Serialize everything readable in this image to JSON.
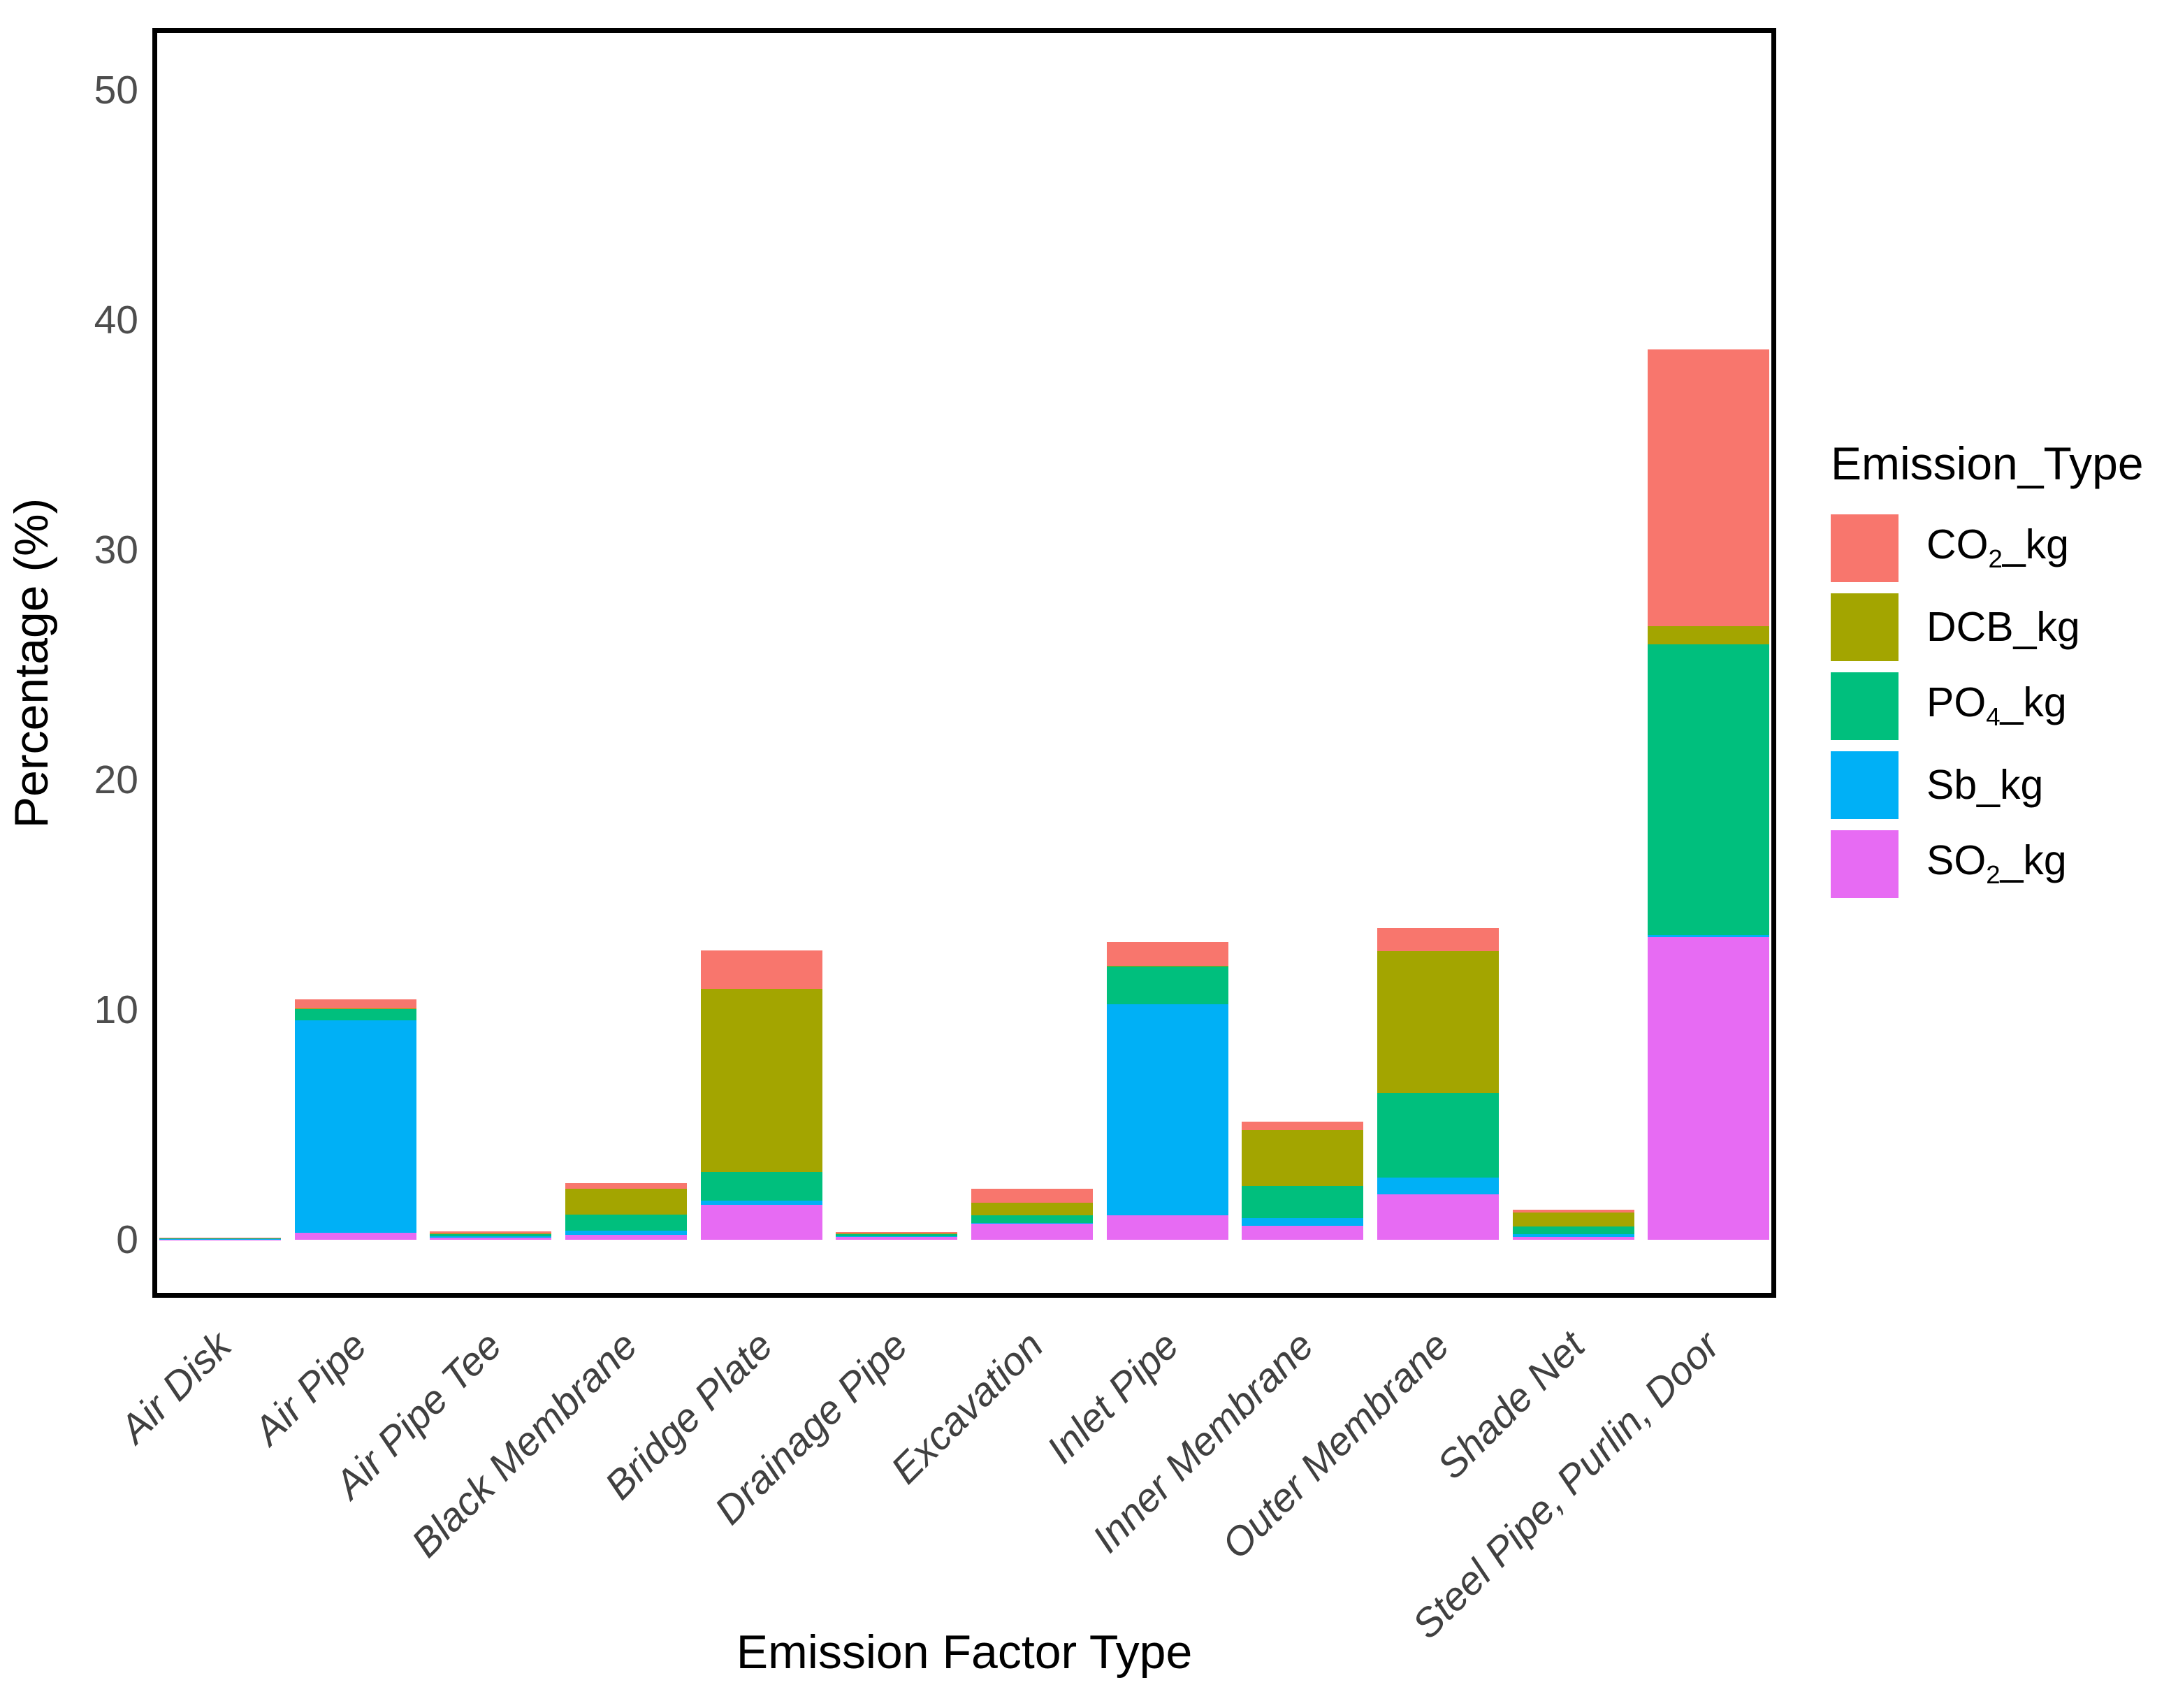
{
  "chart_data": {
    "type": "bar",
    "stacked": true,
    "title": "",
    "xlabel": "Emission Factor Type",
    "ylabel": "Percentage (%)",
    "ylim": [
      0,
      50
    ],
    "yticks": [
      "0",
      "10",
      "20",
      "30",
      "40",
      "50"
    ],
    "grid": false,
    "legend_title": "Emission_Type",
    "legend_position": "right",
    "categories": [
      "Air Disk",
      "Air Pipe",
      "Air Pipe Tee",
      "Black Membrane",
      "Bridge Plate",
      "Drainage Pipe",
      "Excavation",
      "Inlet Pipe",
      "Inner Membrane",
      "Outer Membrane",
      "Shade Net",
      "Steel Pipe, Purlin, Door"
    ],
    "series": [
      {
        "name": "CO2_kg",
        "label_parts": {
          "base": "CO",
          "sub": "2",
          "suffix": "_kg"
        },
        "color": "#F8766D",
        "values": [
          0.01,
          0.4,
          0.1,
          0.24,
          1.67,
          0.07,
          0.62,
          1.04,
          0.37,
          1.01,
          0.13,
          12.03
        ]
      },
      {
        "name": "DCB_kg",
        "label_parts": {
          "base": "DCB",
          "sub": "",
          "suffix": "_kg"
        },
        "color": "#A3A500",
        "values": [
          0.01,
          0.02,
          0.02,
          1.13,
          7.96,
          0.02,
          0.55,
          0.04,
          2.43,
          6.17,
          0.61,
          0.79
        ]
      },
      {
        "name": "PO4_kg",
        "label_parts": {
          "base": "PO",
          "sub": "4",
          "suffix": "_kg"
        },
        "color": "#00BF7D",
        "values": [
          0.05,
          0.5,
          0.1,
          0.69,
          1.25,
          0.1,
          0.33,
          1.64,
          1.4,
          3.67,
          0.34,
          12.65
        ]
      },
      {
        "name": "Sb_kg",
        "label_parts": {
          "base": "Sb",
          "sub": "",
          "suffix": "_kg"
        },
        "color": "#00B0F6",
        "values": [
          0.01,
          9.25,
          0.06,
          0.19,
          0.18,
          0.03,
          0.03,
          9.18,
          0.33,
          0.73,
          0.12,
          0.1
        ]
      },
      {
        "name": "SO2_kg",
        "label_parts": {
          "base": "SO",
          "sub": "2",
          "suffix": "_kg"
        },
        "color": "#E76BF3",
        "values": [
          0.01,
          0.3,
          0.1,
          0.21,
          1.52,
          0.13,
          0.7,
          1.06,
          0.61,
          1.98,
          0.12,
          13.16
        ]
      }
    ],
    "stack_order_bottom_to_top": [
      "SO2_kg",
      "Sb_kg",
      "PO4_kg",
      "DCB_kg",
      "CO2_kg"
    ]
  }
}
